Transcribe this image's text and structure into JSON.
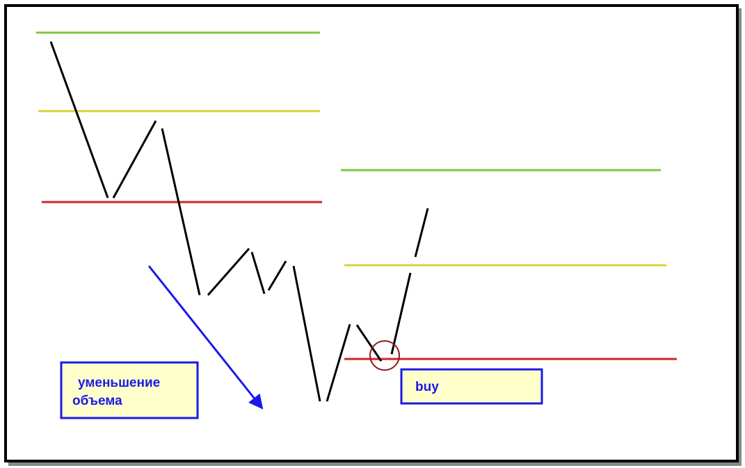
{
  "annotations": {
    "volume_decrease": [
      "уменьшение",
      "объема"
    ],
    "buy": "buy"
  }
}
